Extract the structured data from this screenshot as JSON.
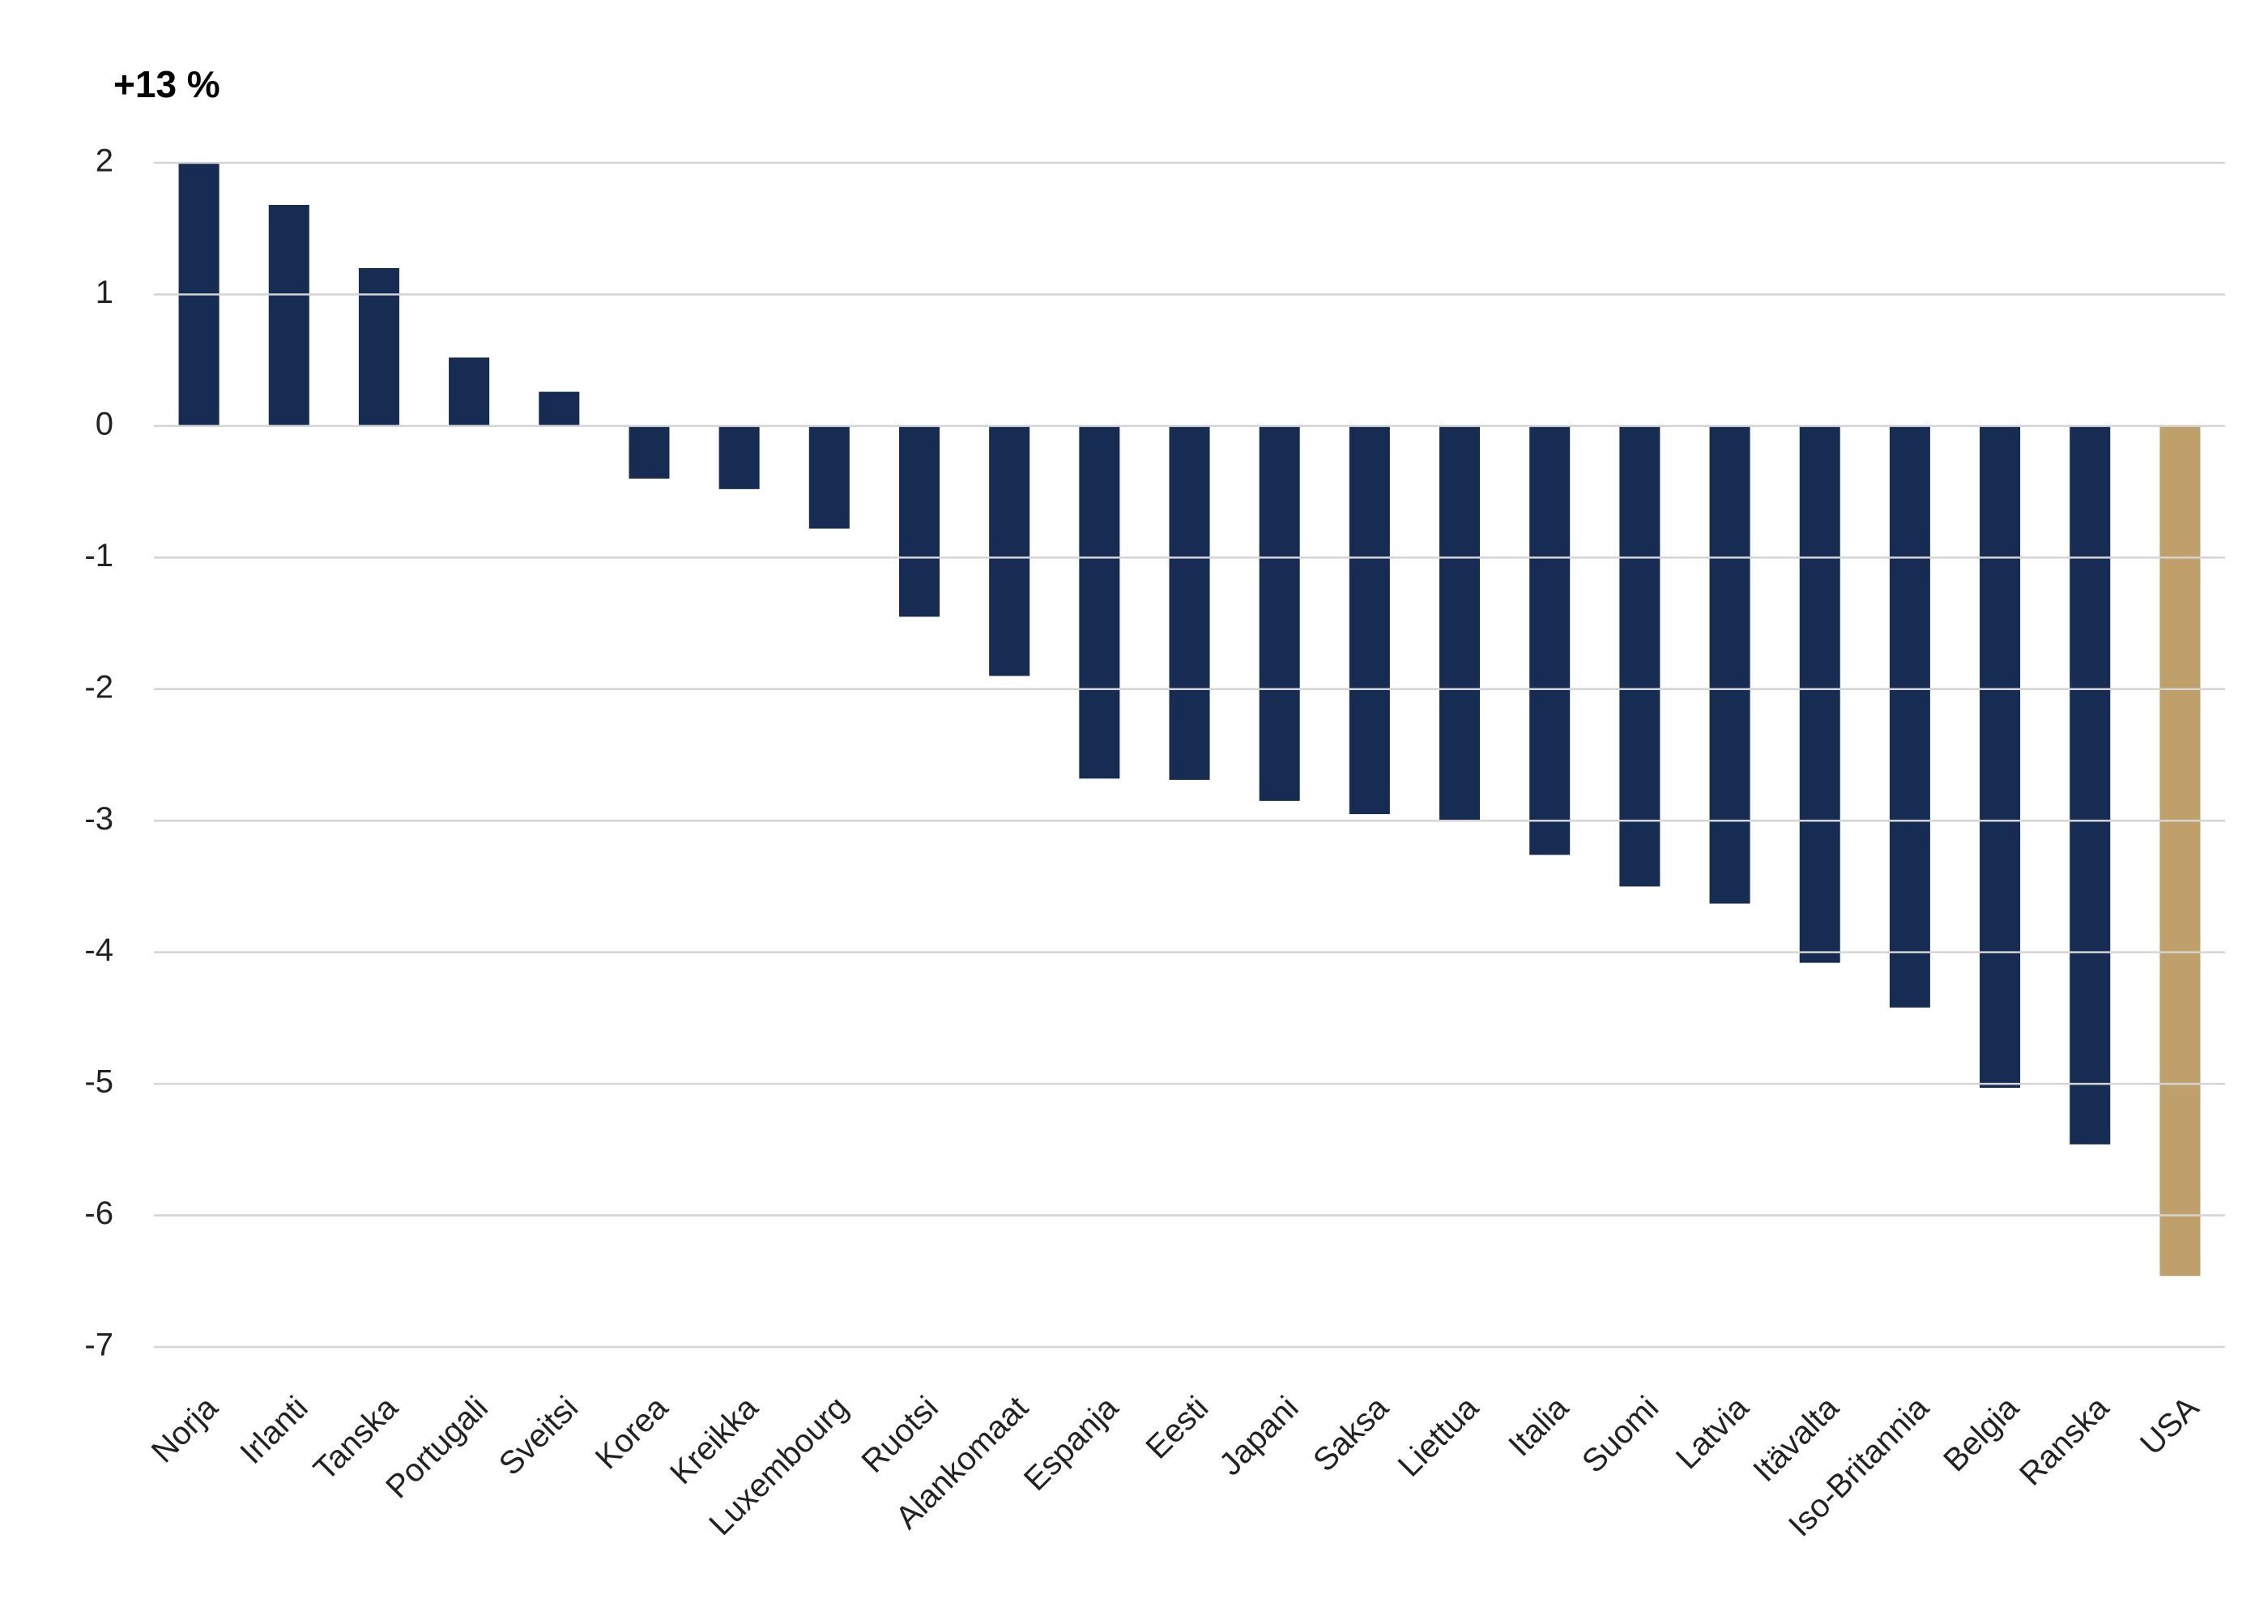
{
  "chart_data": {
    "type": "bar",
    "categories": [
      "Norja",
      "Irlanti",
      "Tanska",
      "Portugali",
      "Sveitsi",
      "Korea",
      "Kreikka",
      "Luxembourg",
      "Ruotsi",
      "Alankomaat",
      "Espanja",
      "Eesti",
      "Japani",
      "Saksa",
      "Liettua",
      "Italia",
      "Suomi",
      "Latvia",
      "Itävalta",
      "Iso-Britannia",
      "Belgia",
      "Ranska",
      "USA"
    ],
    "values": [
      13,
      1.68,
      1.2,
      0.52,
      0.26,
      -0.4,
      -0.48,
      -0.78,
      -1.45,
      -1.9,
      -2.68,
      -2.69,
      -2.85,
      -2.95,
      -3.0,
      -3.26,
      -3.5,
      -3.63,
      -4.08,
      -4.42,
      -5.03,
      -5.46,
      -6.46
    ],
    "value_labels": [
      "+13 %",
      null,
      null,
      null,
      null,
      null,
      null,
      null,
      null,
      null,
      null,
      null,
      null,
      null,
      null,
      null,
      null,
      null,
      null,
      null,
      null,
      null,
      null
    ],
    "colors": [
      "#162c52",
      "#162c52",
      "#162c52",
      "#162c52",
      "#162c52",
      "#162c52",
      "#162c52",
      "#162c52",
      "#162c52",
      "#162c52",
      "#162c52",
      "#162c52",
      "#162c52",
      "#162c52",
      "#162c52",
      "#162c52",
      "#162c52",
      "#162c52",
      "#162c52",
      "#162c52",
      "#162c52",
      "#162c52",
      "#bfa06a"
    ],
    "ylim": [
      -7,
      2
    ],
    "yticks": [
      -7,
      -6,
      -5,
      -4,
      -3,
      -2,
      -1,
      0,
      1,
      2
    ],
    "grid": true
  }
}
